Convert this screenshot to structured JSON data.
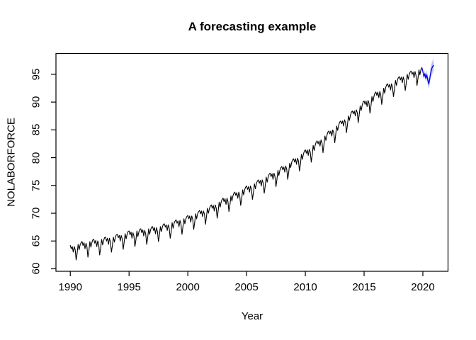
{
  "chart_data": {
    "type": "line",
    "title": "A forecasting example",
    "xlabel": "Year",
    "ylabel": "NOLABORFORCE",
    "x_ticks": [
      1990,
      1995,
      2000,
      2005,
      2010,
      2015,
      2020
    ],
    "y_ticks": [
      60,
      65,
      70,
      75,
      80,
      85,
      90,
      95
    ],
    "xlim": [
      1988.78,
      2022.14
    ],
    "ylim": [
      59.55,
      98.75
    ],
    "grid": "off",
    "legend": "none",
    "colors": {
      "observed_line": "#000000",
      "forecast_line": "#0000e6",
      "band_80": "#b3bcec",
      "band_95": "#d9ddf4",
      "axis": "#000000",
      "background": "#ffffff"
    },
    "observed": {
      "name": "NOLABORFORCE (observed, monthly)",
      "start_year": 1990,
      "frequency": 12,
      "per_year_values": [
        [
          64.2,
          63.6,
          64.0,
          63.0,
          64.0,
          63.4,
          61.6,
          62.8,
          64.4,
          63.4,
          64.3,
          64.7
        ],
        [
          64.9,
          64.2,
          64.7,
          63.6,
          64.6,
          64.0,
          62.1,
          63.3,
          64.9,
          63.9,
          64.7,
          65.2
        ],
        [
          65.3,
          64.6,
          65.1,
          64.0,
          65.0,
          64.4,
          62.5,
          63.7,
          65.3,
          64.3,
          65.1,
          65.6
        ],
        [
          65.7,
          65.0,
          65.5,
          64.4,
          65.5,
          64.8,
          63.0,
          64.2,
          65.7,
          64.8,
          65.6,
          66.1
        ],
        [
          66.2,
          65.6,
          66.0,
          65.0,
          66.0,
          65.4,
          63.5,
          64.8,
          66.3,
          65.4,
          66.2,
          66.7
        ],
        [
          66.8,
          66.1,
          66.6,
          65.5,
          66.5,
          65.9,
          64.0,
          65.2,
          66.8,
          65.8,
          66.6,
          67.1
        ],
        [
          67.2,
          66.5,
          67.0,
          65.9,
          66.9,
          66.3,
          64.4,
          65.6,
          67.2,
          66.2,
          67.0,
          67.5
        ],
        [
          67.6,
          66.9,
          67.4,
          66.3,
          67.4,
          66.7,
          64.9,
          66.1,
          67.6,
          66.7,
          67.5,
          68.0
        ],
        [
          68.1,
          67.5,
          67.9,
          66.9,
          67.9,
          67.3,
          65.5,
          66.7,
          68.3,
          67.3,
          68.2,
          68.6
        ],
        [
          68.8,
          68.2,
          68.6,
          67.6,
          68.7,
          68.0,
          66.2,
          67.5,
          69.0,
          68.1,
          69.0,
          69.4
        ],
        [
          69.6,
          69.0,
          69.5,
          68.4,
          69.5,
          68.9,
          67.1,
          68.3,
          69.9,
          69.0,
          69.9,
          70.3
        ],
        [
          70.5,
          69.9,
          70.4,
          69.4,
          70.4,
          69.8,
          68.0,
          69.3,
          70.9,
          70.0,
          70.8,
          71.3
        ],
        [
          71.5,
          70.9,
          71.4,
          70.4,
          71.5,
          70.9,
          69.1,
          70.4,
          72.0,
          71.1,
          72.0,
          72.5
        ],
        [
          72.7,
          72.1,
          72.6,
          71.6,
          72.7,
          72.1,
          70.3,
          71.5,
          73.1,
          72.2,
          73.1,
          73.6
        ],
        [
          73.8,
          73.2,
          73.7,
          72.7,
          73.8,
          73.2,
          71.4,
          72.6,
          74.2,
          73.3,
          74.2,
          74.7
        ],
        [
          74.9,
          74.3,
          74.8,
          73.8,
          74.9,
          74.3,
          72.5,
          73.7,
          75.3,
          74.4,
          75.3,
          75.8
        ],
        [
          76.0,
          75.4,
          75.9,
          74.9,
          76.0,
          75.4,
          73.6,
          74.9,
          76.5,
          75.6,
          76.5,
          77.0
        ],
        [
          77.2,
          76.6,
          77.1,
          76.1,
          77.2,
          76.6,
          74.8,
          76.1,
          77.7,
          76.8,
          77.7,
          78.2
        ],
        [
          78.4,
          77.8,
          78.3,
          77.4,
          78.5,
          77.9,
          76.1,
          77.4,
          79.0,
          78.2,
          79.1,
          79.6
        ],
        [
          79.8,
          79.2,
          79.8,
          78.8,
          79.9,
          79.4,
          77.6,
          78.9,
          80.6,
          79.7,
          80.6,
          81.2
        ],
        [
          81.4,
          80.8,
          81.4,
          80.4,
          81.5,
          81.0,
          79.2,
          80.5,
          82.2,
          81.3,
          82.2,
          82.8
        ],
        [
          83.0,
          82.5,
          83.0,
          82.1,
          83.2,
          82.7,
          80.9,
          82.3,
          83.9,
          83.1,
          84.0,
          84.6
        ],
        [
          84.8,
          84.3,
          84.8,
          83.9,
          85.0,
          84.5,
          82.7,
          84.1,
          85.7,
          84.9,
          85.8,
          86.4
        ],
        [
          86.6,
          86.1,
          86.6,
          85.7,
          86.8,
          86.3,
          84.5,
          85.9,
          87.5,
          86.7,
          87.6,
          88.2
        ],
        [
          88.4,
          87.9,
          88.4,
          87.5,
          88.6,
          88.1,
          86.3,
          87.7,
          89.3,
          88.5,
          89.4,
          90.0
        ],
        [
          90.2,
          89.6,
          90.2,
          89.2,
          90.3,
          89.8,
          88.0,
          89.3,
          91.0,
          90.1,
          91.0,
          91.6
        ],
        [
          91.8,
          91.2,
          91.8,
          90.8,
          91.9,
          91.3,
          89.6,
          90.9,
          92.5,
          91.6,
          92.6,
          93.1
        ],
        [
          93.3,
          92.7,
          93.2,
          92.2,
          93.3,
          92.7,
          91.0,
          92.3,
          93.9,
          93.0,
          93.9,
          94.4
        ],
        [
          94.6,
          94.0,
          94.5,
          93.5,
          94.5,
          93.9,
          92.1,
          93.4,
          95.0,
          94.1,
          94.9,
          95.4
        ],
        [
          95.6,
          95.0,
          95.4,
          94.4,
          95.5,
          94.8,
          93.0,
          94.3,
          95.8,
          94.9,
          95.8,
          96.2
        ]
      ]
    },
    "forecast": {
      "name": "forecast (mean with 80/95% bands)",
      "start_year": 2020,
      "frequency": 12,
      "mean": [
        95.5,
        94.6,
        95.1,
        94.3,
        94.9,
        94.0,
        93.3,
        94.2,
        95.3,
        96.0,
        96.4,
        96.6
      ],
      "spread80": [
        0.25,
        0.35,
        0.42,
        0.48,
        0.54,
        0.6,
        0.65,
        0.7,
        0.74,
        0.78,
        0.82,
        0.85
      ],
      "spread95": [
        0.4,
        0.55,
        0.66,
        0.76,
        0.85,
        0.93,
        1.0,
        1.07,
        1.13,
        1.19,
        1.24,
        1.3
      ]
    }
  }
}
